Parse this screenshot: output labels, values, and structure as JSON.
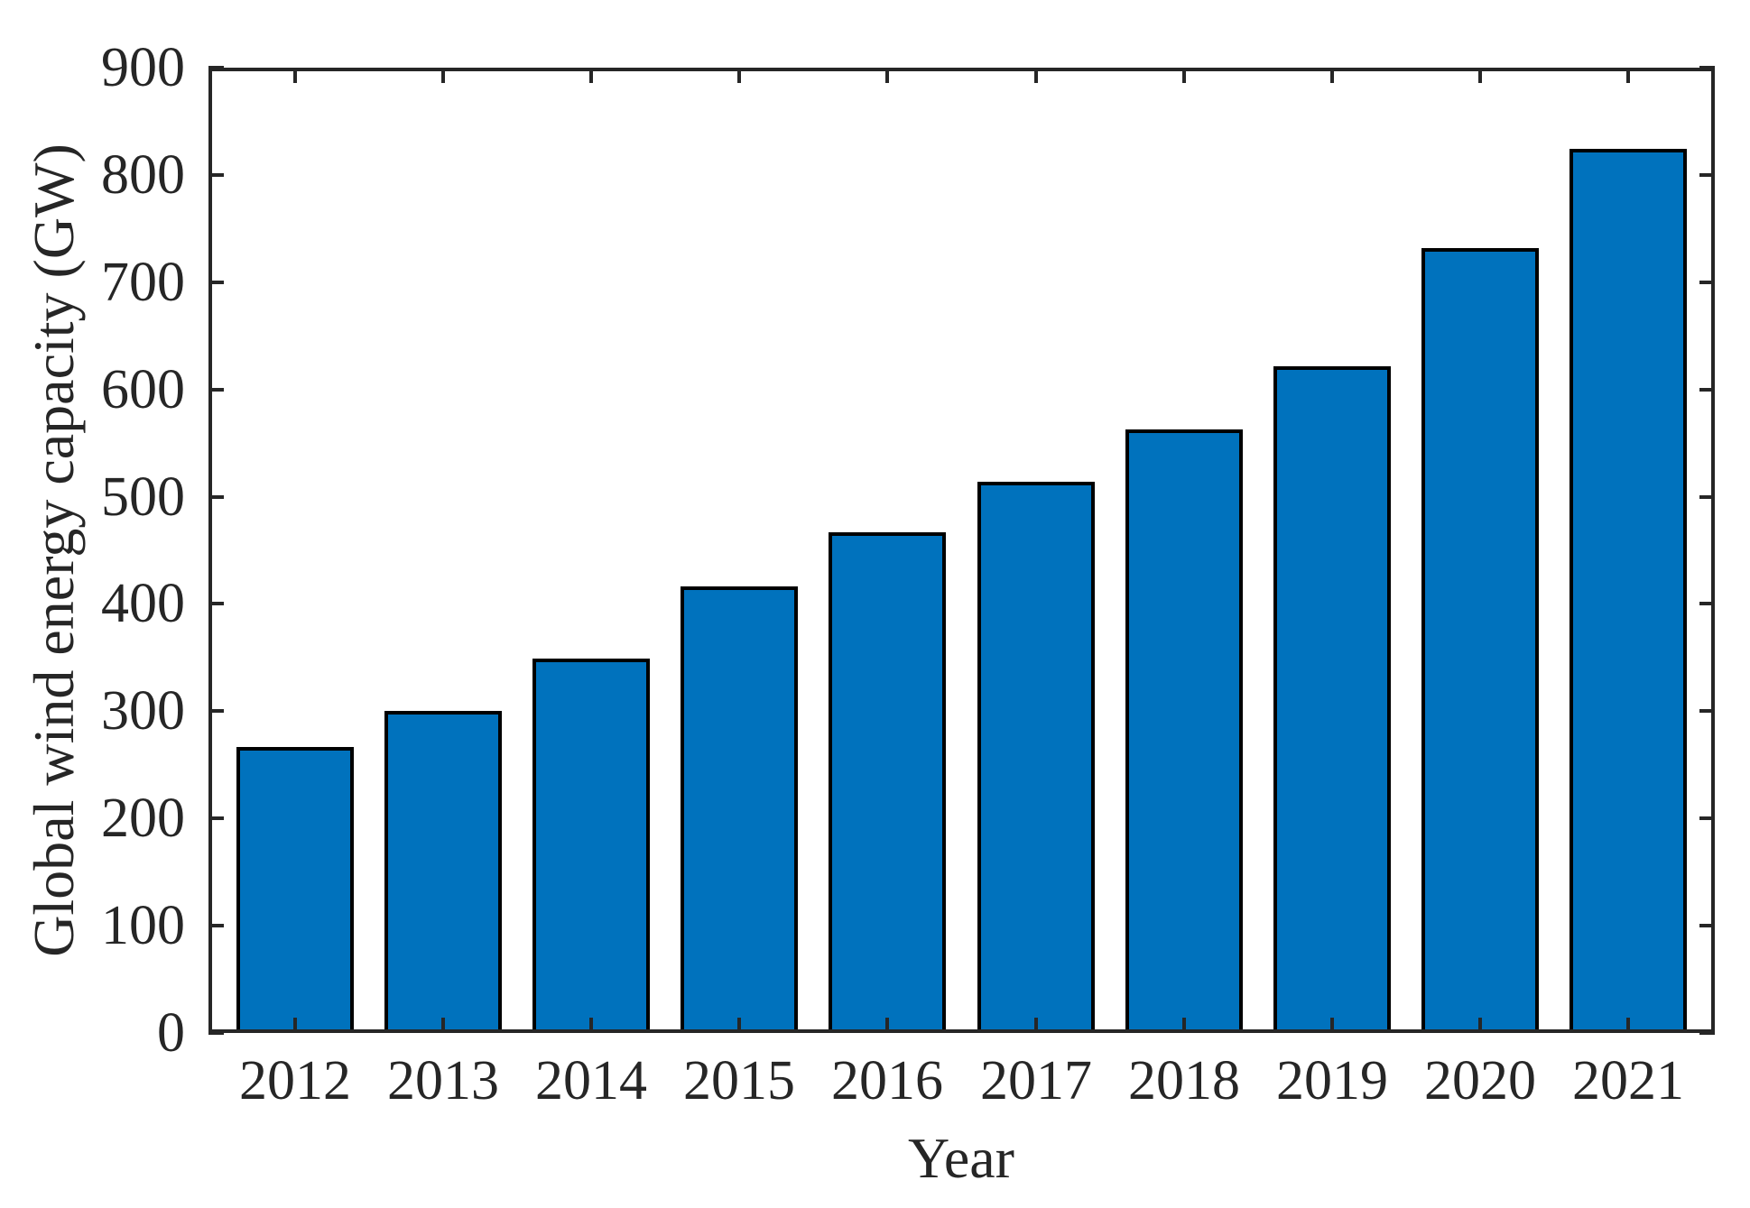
{
  "chart_data": {
    "type": "bar",
    "title": "",
    "xlabel": "Year",
    "ylabel": "Global wind energy capacity (GW)",
    "categories": [
      "2012",
      "2013",
      "2014",
      "2015",
      "2016",
      "2017",
      "2018",
      "2019",
      "2020",
      "2021"
    ],
    "values": [
      267,
      300,
      349,
      416,
      467,
      514,
      563,
      622,
      732,
      824
    ],
    "ylim": [
      0,
      900
    ],
    "ytick_step": 100,
    "grid": "off",
    "legend": "none",
    "bar_color": "#0072BD",
    "bar_edge_color": "#000000",
    "axis_color": "#262626"
  }
}
